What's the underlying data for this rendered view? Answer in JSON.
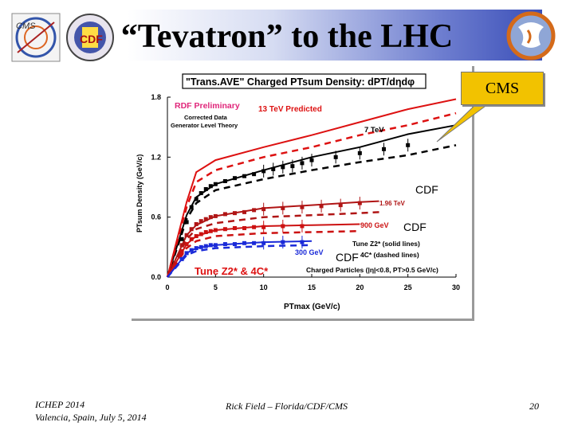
{
  "slide": {
    "title": "“Tevatron” to the LHC",
    "footer_conf_line1": "ICHEP 2014",
    "footer_conf_line2": "Valencia, Spain, July 5, 2014",
    "footer_author": "Rick Field – Florida/CDF/CMS",
    "page_number": "20",
    "logo_left_text": "CMS",
    "logo_cdf_text": "CDF"
  },
  "callouts": {
    "cms": "CMS",
    "cdf_upper": "CDF",
    "cdf_mid": "CDF",
    "cdf_low": "CDF"
  },
  "chart_data": {
    "type": "line",
    "title": "\"Trans.AVE\" Charged PTsum Density: dPT/dηdφ",
    "xlabel": "PTmax (GeV/c)",
    "ylabel": "PTsum Density (GeV/c)",
    "xlim": [
      0,
      30
    ],
    "ylim": [
      0,
      1.8
    ],
    "xticks": [
      "0",
      "5",
      "10",
      "15",
      "20",
      "25",
      "30"
    ],
    "yticks": [
      "0.0",
      "0.6",
      "1.2",
      "1.8"
    ],
    "legend": {
      "rdf": "RDF Preliminary",
      "corrected": "Corrected Data",
      "generator": "Generator Level Theory",
      "predicted": "13 TeV Predicted",
      "tune_solid": "Tune Z2* (solid lines)",
      "tune_dashed": "4C* (dashed lines)",
      "cuts": "Charged Particles (|η|<0.8, PT>0.5 GeV/c)",
      "tunes": "Tune Z2* & 4C*"
    },
    "series": [
      {
        "name": "7 TeV",
        "color": "#000000",
        "points": [
          [
            1.5,
            0.38
          ],
          [
            2,
            0.55
          ],
          [
            2.5,
            0.7
          ],
          [
            3,
            0.78
          ],
          [
            3.5,
            0.84
          ],
          [
            4,
            0.88
          ],
          [
            4.5,
            0.91
          ],
          [
            5,
            0.93
          ],
          [
            6,
            0.96
          ],
          [
            7,
            0.99
          ],
          [
            8,
            1.01
          ],
          [
            9,
            1.03
          ],
          [
            10,
            1.06
          ],
          [
            11,
            1.08
          ],
          [
            12,
            1.1
          ],
          [
            13,
            1.11
          ],
          [
            14,
            1.14
          ],
          [
            15,
            1.17
          ],
          [
            17.5,
            1.2
          ],
          [
            20,
            1.24
          ],
          [
            22.5,
            1.28
          ],
          [
            25,
            1.32
          ]
        ],
        "solid": [
          [
            0,
            0
          ],
          [
            2,
            0.62
          ],
          [
            3,
            0.8
          ],
          [
            5,
            0.93
          ],
          [
            10,
            1.07
          ],
          [
            15,
            1.2
          ],
          [
            20,
            1.3
          ],
          [
            25,
            1.43
          ],
          [
            30,
            1.52
          ]
        ],
        "dashed": [
          [
            0,
            0
          ],
          [
            2,
            0.58
          ],
          [
            3,
            0.74
          ],
          [
            5,
            0.87
          ],
          [
            10,
            0.98
          ],
          [
            15,
            1.07
          ],
          [
            20,
            1.15
          ],
          [
            25,
            1.22
          ],
          [
            30,
            1.32
          ]
        ]
      },
      {
        "name": "13 TeV Predicted",
        "color": "#dd1111",
        "solid": [
          [
            0,
            0
          ],
          [
            2,
            0.75
          ],
          [
            3,
            1.05
          ],
          [
            5,
            1.17
          ],
          [
            10,
            1.3
          ],
          [
            15,
            1.42
          ],
          [
            20,
            1.55
          ],
          [
            25,
            1.68
          ],
          [
            30,
            1.78
          ]
        ],
        "dashed": [
          [
            0,
            0
          ],
          [
            2,
            0.7
          ],
          [
            3,
            0.95
          ],
          [
            5,
            1.07
          ],
          [
            10,
            1.2
          ],
          [
            15,
            1.3
          ],
          [
            20,
            1.42
          ],
          [
            25,
            1.52
          ],
          [
            30,
            1.64
          ]
        ]
      },
      {
        "name": "1.96 TeV",
        "color": "#b01515",
        "points": [
          [
            1.5,
            0.32
          ],
          [
            2,
            0.42
          ],
          [
            2.5,
            0.48
          ],
          [
            3,
            0.53
          ],
          [
            3.5,
            0.56
          ],
          [
            4,
            0.58
          ],
          [
            4.5,
            0.6
          ],
          [
            5,
            0.61
          ],
          [
            6,
            0.63
          ],
          [
            7,
            0.64
          ],
          [
            8,
            0.65
          ],
          [
            9,
            0.67
          ],
          [
            10,
            0.68
          ],
          [
            12,
            0.69
          ],
          [
            14,
            0.7
          ],
          [
            16,
            0.71
          ],
          [
            18,
            0.72
          ],
          [
            20,
            0.74
          ]
        ],
        "solid": [
          [
            0,
            0
          ],
          [
            2,
            0.42
          ],
          [
            3,
            0.52
          ],
          [
            5,
            0.61
          ],
          [
            10,
            0.69
          ],
          [
            15,
            0.72
          ],
          [
            20,
            0.75
          ],
          [
            22,
            0.76
          ]
        ],
        "dashed": [
          [
            0,
            0
          ],
          [
            2,
            0.38
          ],
          [
            3,
            0.48
          ],
          [
            5,
            0.54
          ],
          [
            10,
            0.6
          ],
          [
            15,
            0.62
          ],
          [
            20,
            0.64
          ],
          [
            22,
            0.65
          ]
        ]
      },
      {
        "name": "900 GeV",
        "color": "#cc1111",
        "points": [
          [
            1.5,
            0.26
          ],
          [
            2,
            0.33
          ],
          [
            2.5,
            0.38
          ],
          [
            3,
            0.41
          ],
          [
            3.5,
            0.43
          ],
          [
            4,
            0.45
          ],
          [
            4.5,
            0.46
          ],
          [
            5,
            0.47
          ],
          [
            6,
            0.48
          ],
          [
            7,
            0.49
          ],
          [
            8,
            0.49
          ],
          [
            9,
            0.5
          ],
          [
            10,
            0.5
          ],
          [
            12,
            0.51
          ],
          [
            14,
            0.51
          ]
        ],
        "solid": [
          [
            0,
            0
          ],
          [
            2,
            0.33
          ],
          [
            3,
            0.41
          ],
          [
            5,
            0.47
          ],
          [
            10,
            0.51
          ],
          [
            15,
            0.52
          ],
          [
            20,
            0.53
          ]
        ],
        "dashed": [
          [
            0,
            0
          ],
          [
            2,
            0.29
          ],
          [
            3,
            0.36
          ],
          [
            5,
            0.41
          ],
          [
            10,
            0.44
          ],
          [
            15,
            0.45
          ],
          [
            20,
            0.46
          ]
        ]
      },
      {
        "name": "300 GeV",
        "color": "#1a2ad8",
        "points": [
          [
            1.5,
            0.18
          ],
          [
            2,
            0.24
          ],
          [
            2.5,
            0.27
          ],
          [
            3,
            0.29
          ],
          [
            3.5,
            0.3
          ],
          [
            4,
            0.31
          ],
          [
            4.5,
            0.32
          ],
          [
            5,
            0.32
          ],
          [
            6,
            0.33
          ],
          [
            7,
            0.33
          ],
          [
            8,
            0.34
          ],
          [
            9,
            0.34
          ],
          [
            10,
            0.34
          ],
          [
            12,
            0.35
          ],
          [
            14,
            0.35
          ]
        ],
        "solid": [
          [
            0,
            0
          ],
          [
            2,
            0.24
          ],
          [
            3,
            0.29
          ],
          [
            5,
            0.32
          ],
          [
            10,
            0.35
          ],
          [
            15,
            0.36
          ]
        ],
        "dashed": [
          [
            0,
            0
          ],
          [
            2,
            0.22
          ],
          [
            3,
            0.26
          ],
          [
            5,
            0.29
          ],
          [
            10,
            0.31
          ],
          [
            15,
            0.32
          ]
        ]
      }
    ],
    "energy_labels": [
      {
        "text": "7 TeV",
        "color": "#000000"
      },
      {
        "text": "1.96 TeV",
        "color": "#b01515"
      },
      {
        "text": "900 GeV",
        "color": "#cc1111"
      },
      {
        "text": "300 GeV",
        "color": "#1a2ad8"
      }
    ]
  }
}
